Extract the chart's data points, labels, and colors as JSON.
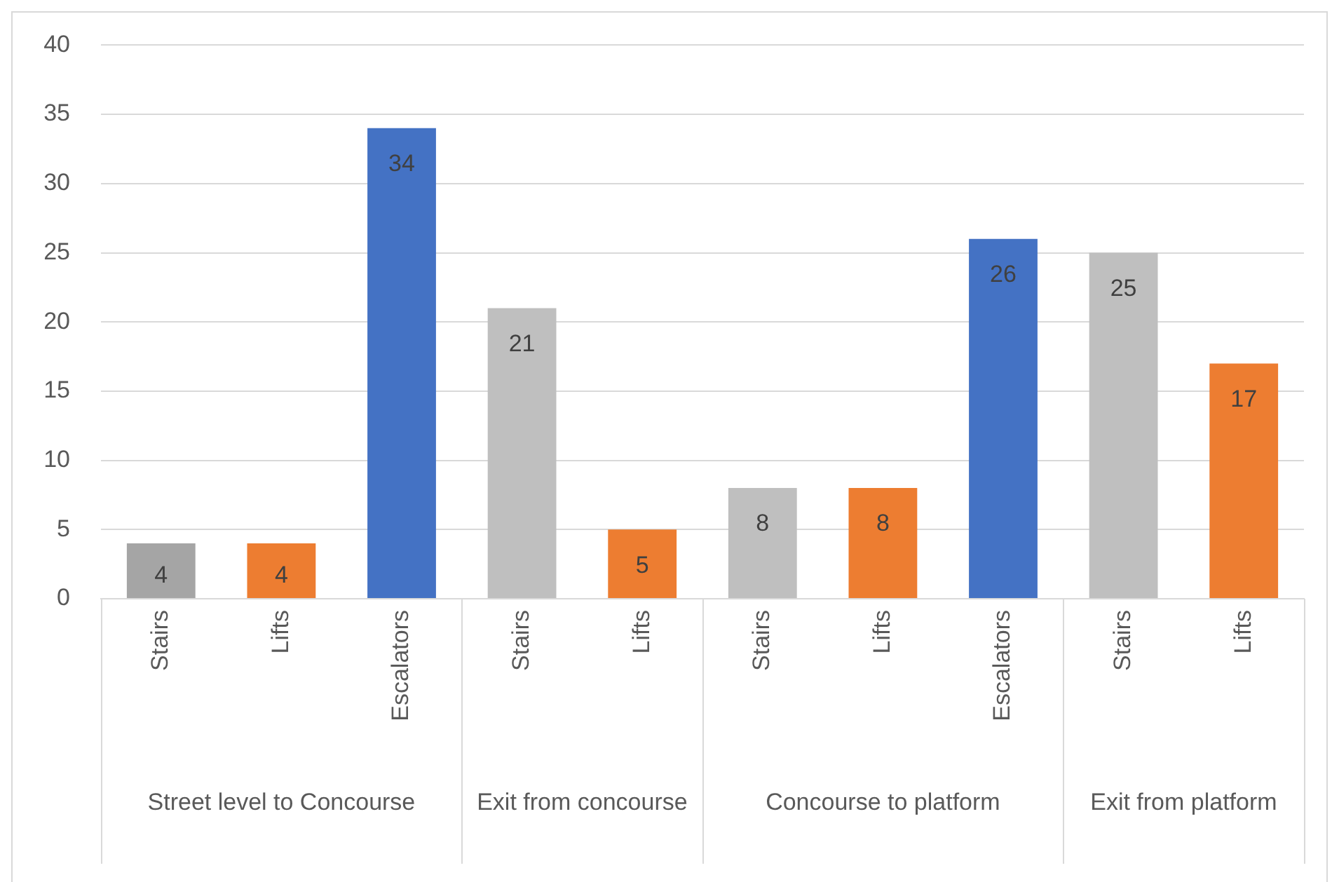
{
  "chart_data": {
    "type": "bar",
    "categories": [
      "Stairs",
      "Lifts",
      "Escalators",
      "Stairs",
      "Lifts",
      "Stairs",
      "Lifts",
      "Escalators",
      "Stairs",
      "Lifts"
    ],
    "values": [
      4,
      4,
      34,
      21,
      5,
      8,
      8,
      26,
      25,
      17
    ],
    "colors": [
      "#a5a5a5",
      "#ed7d31",
      "#4472c4",
      "#bfbfbf",
      "#ed7d31",
      "#bfbfbf",
      "#ed7d31",
      "#4472c4",
      "#bfbfbf",
      "#ed7d31"
    ],
    "ylim": [
      0,
      40
    ],
    "yticks": [
      0,
      5,
      10,
      15,
      20,
      25,
      30,
      35,
      40
    ],
    "grid": "y",
    "legend": false,
    "data_labels": true,
    "annotations": [
      "Street level to Concourse",
      "Exit from concourse",
      "Concourse to platform",
      "Exit from platform"
    ]
  }
}
